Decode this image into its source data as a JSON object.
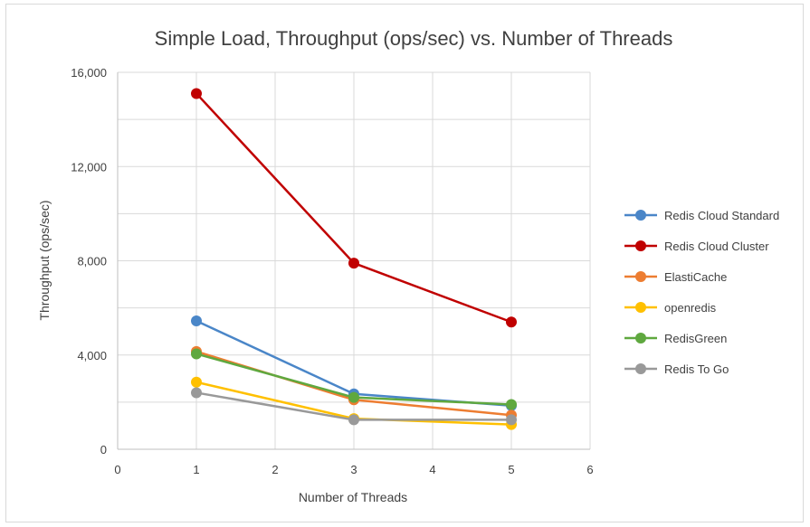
{
  "chart_data": {
    "type": "scatter",
    "title": "Simple Load, Throughput (ops/sec) vs. Number of Threads",
    "xlabel": "Number of Threads",
    "ylabel": "Throughput (ops/sec)",
    "xlim": [
      0,
      6
    ],
    "ylim": [
      0,
      16000
    ],
    "x_ticks": [
      "0",
      "1",
      "2",
      "3",
      "4",
      "5",
      "6"
    ],
    "y_ticks": [
      "0",
      "4,000",
      "8,000",
      "12,000",
      "16,000"
    ],
    "grid": true,
    "legend_position": "right",
    "x": [
      1,
      3,
      5
    ],
    "series": [
      {
        "name": "Redis Cloud Standard",
        "color": "#4a86c8",
        "values": [
          5450,
          2350,
          1850
        ]
      },
      {
        "name": "Redis Cloud Cluster",
        "color": "#c00000",
        "values": [
          15100,
          7900,
          5400
        ]
      },
      {
        "name": "ElastiCache",
        "color": "#ed7d31",
        "values": [
          4150,
          2100,
          1450
        ]
      },
      {
        "name": "openredis",
        "color": "#ffc000",
        "values": [
          2850,
          1300,
          1050
        ]
      },
      {
        "name": "RedisGreen",
        "color": "#5fa83f",
        "values": [
          4050,
          2200,
          1900
        ]
      },
      {
        "name": "Redis To Go",
        "color": "#999999",
        "values": [
          2400,
          1250,
          1250
        ]
      }
    ]
  }
}
